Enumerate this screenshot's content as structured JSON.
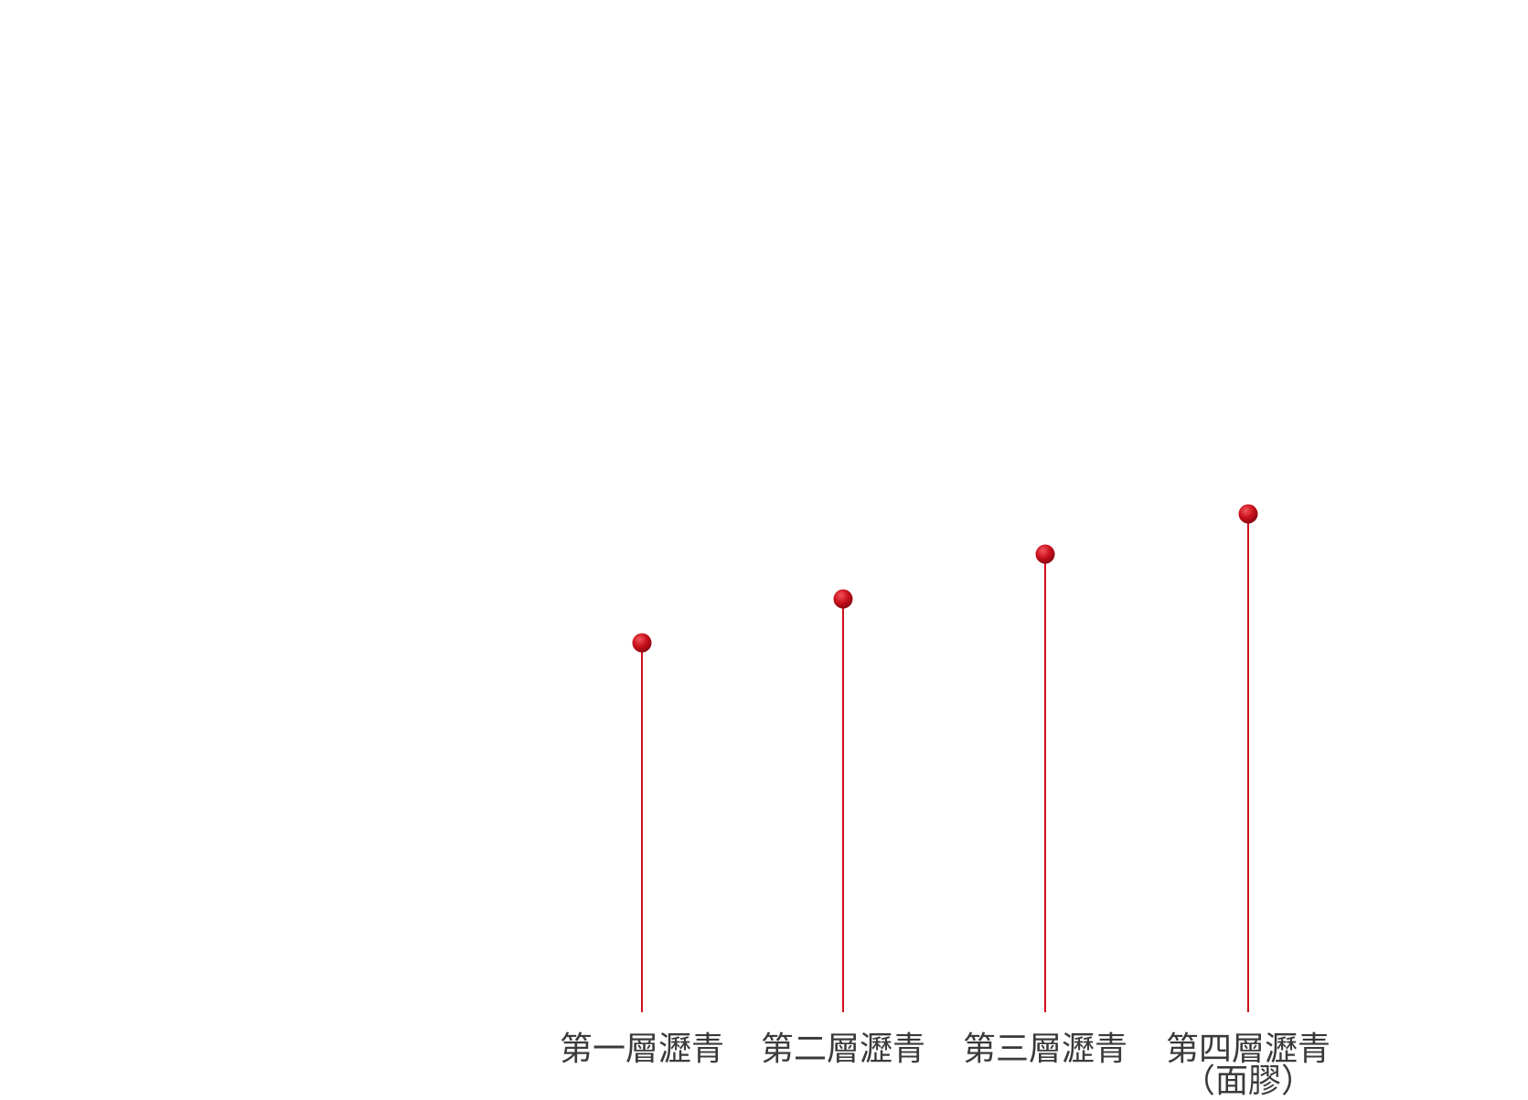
{
  "layers": [
    {
      "label": "第一層瀝青"
    },
    {
      "label": "第二層瀝青"
    },
    {
      "label": "第三層瀝青"
    },
    {
      "label": "第四層瀝青",
      "note": "（面膠）"
    }
  ]
}
